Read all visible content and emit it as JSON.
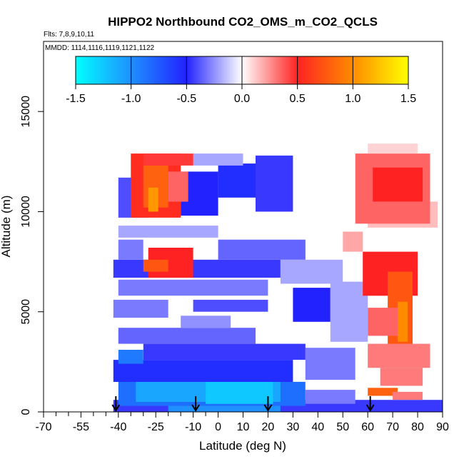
{
  "chart_data": {
    "type": "heatmap",
    "title": "HIPPO2 Northbound CO2_OMS_m_CO2_QCLS",
    "subtitle": "Flts: 7,8,9,10,11",
    "mmdd_label": "MMDD: 1114,1116,1119,1121,1122",
    "xlabel": "Latitude (deg N)",
    "ylabel": "Altitude (m)",
    "xlim": [
      -70,
      90
    ],
    "ylim": [
      0,
      18500
    ],
    "x_ticks": [
      -70,
      -55,
      -40,
      -25,
      -10,
      0,
      10,
      20,
      30,
      40,
      50,
      60,
      70,
      80,
      90
    ],
    "x_tick_labels": [
      "-70",
      "-55",
      "-40",
      "-25",
      "-10",
      "0",
      "10",
      "20",
      "30",
      "40",
      "50",
      "60",
      "70",
      "80",
      "90"
    ],
    "x_minor_ticks": [
      -65,
      -60,
      -50,
      -45,
      -35,
      -30,
      -20,
      -15,
      -5
    ],
    "y_ticks": [
      0,
      5000,
      10000,
      15000
    ],
    "y_tick_labels": [
      "0",
      "5000",
      "10000",
      "15000"
    ],
    "colorbar": {
      "min": -1.5,
      "max": 1.5,
      "ticks": [
        -1.5,
        -1.0,
        -0.5,
        0.0,
        0.5,
        1.0,
        1.5
      ],
      "tick_labels": [
        "-1.5",
        "-1.0",
        "-0.5",
        "0.0",
        "0.5",
        "1.0",
        "1.5"
      ],
      "colors": [
        "#00ffff",
        "#1e90ff",
        "#2222ff",
        "#ffffff",
        "#ff2222",
        "#ff8c00",
        "#ffff00"
      ]
    },
    "profile_arrows_lat": [
      -41,
      -9,
      20,
      61
    ],
    "grid": false,
    "cells_note_units": "latitude ranges in deg N, altitude ranges in m, value in colorbar units",
    "cells": [
      [
        -42,
        90,
        0,
        600,
        -0.45
      ],
      [
        -20,
        25,
        0,
        600,
        -1.0
      ],
      [
        -40,
        35,
        300,
        1500,
        -0.85
      ],
      [
        -33,
        25,
        500,
        1600,
        -1.1
      ],
      [
        -5,
        22,
        400,
        1700,
        -1.25
      ],
      [
        35,
        55,
        400,
        1100,
        -0.3
      ],
      [
        60,
        72,
        800,
        1200,
        0.8
      ],
      [
        -42,
        30,
        1500,
        2600,
        -0.55
      ],
      [
        -40,
        -30,
        2400,
        3100,
        -0.9
      ],
      [
        -30,
        35,
        2600,
        3400,
        -0.45
      ],
      [
        35,
        55,
        1600,
        3200,
        -0.3
      ],
      [
        -40,
        15,
        3400,
        4200,
        -0.35
      ],
      [
        -15,
        5,
        4200,
        4800,
        -0.25
      ],
      [
        -42,
        -20,
        4700,
        5600,
        -0.3
      ],
      [
        -10,
        20,
        5000,
        5600,
        -0.4
      ],
      [
        30,
        45,
        4500,
        6200,
        -0.5
      ],
      [
        45,
        60,
        3500,
        6500,
        -0.2
      ],
      [
        -40,
        20,
        5800,
        6600,
        -0.3
      ],
      [
        -42,
        25,
        6700,
        7600,
        -0.45
      ],
      [
        25,
        50,
        6400,
        7600,
        -0.2
      ],
      [
        -40,
        -30,
        7600,
        8600,
        -0.3
      ],
      [
        0,
        35,
        7600,
        8600,
        -0.35
      ],
      [
        -40,
        0,
        8700,
        9300,
        -0.2
      ],
      [
        -40,
        -28,
        9700,
        11700,
        -0.4
      ],
      [
        -15,
        0,
        9800,
        12000,
        -0.5
      ],
      [
        0,
        15,
        10700,
        12400,
        -0.55
      ],
      [
        15,
        30,
        10000,
        12800,
        -0.45
      ],
      [
        -10,
        10,
        12300,
        12900,
        -0.2
      ],
      [
        50,
        58,
        8000,
        9000,
        0.2
      ],
      [
        60,
        88,
        9200,
        10500,
        0.15
      ],
      [
        -35,
        -15,
        9700,
        12900,
        0.55
      ],
      [
        -30,
        -20,
        10200,
        12500,
        0.8
      ],
      [
        -28,
        -24,
        10000,
        11200,
        1.05
      ],
      [
        -20,
        -12,
        10500,
        12000,
        0.35
      ],
      [
        -30,
        -10,
        12300,
        12900,
        0.45
      ],
      [
        55,
        85,
        9400,
        12900,
        0.35
      ],
      [
        62,
        82,
        10500,
        12200,
        0.5
      ],
      [
        60,
        80,
        12900,
        13400,
        0.1
      ],
      [
        -28,
        -10,
        6700,
        8200,
        0.5
      ],
      [
        -30,
        -20,
        7000,
        7600,
        0.75
      ],
      [
        58,
        80,
        5800,
        8000,
        0.5
      ],
      [
        68,
        78,
        3300,
        7000,
        0.75
      ],
      [
        72,
        76,
        3500,
        5500,
        1.0
      ],
      [
        60,
        72,
        3800,
        5200,
        0.35
      ],
      [
        60,
        85,
        2200,
        3400,
        0.3
      ],
      [
        65,
        82,
        1300,
        2200,
        0.3
      ],
      [
        70,
        82,
        600,
        1000,
        0.3
      ]
    ]
  }
}
